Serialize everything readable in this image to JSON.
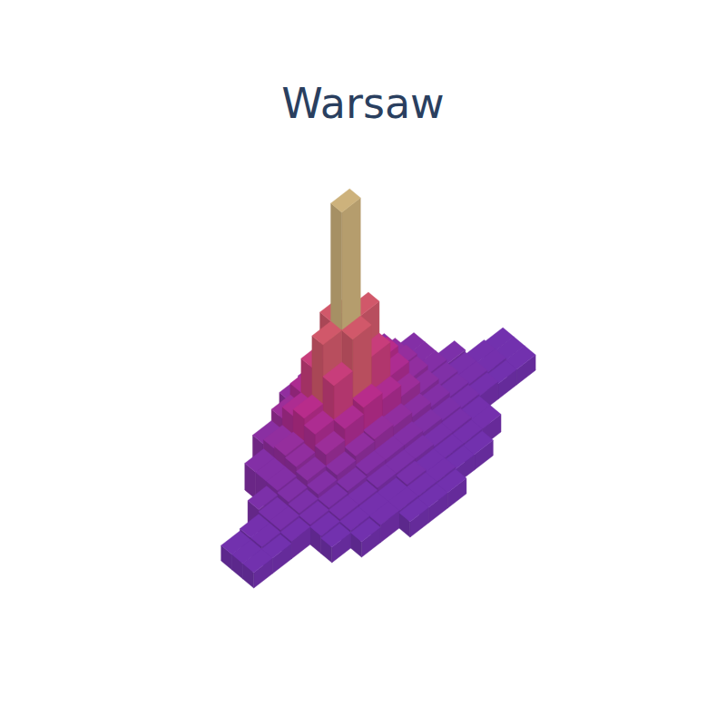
{
  "chart_data": {
    "type": "surface",
    "title": "Warsaw",
    "tick_labels": false,
    "zlim": [
      0,
      100
    ],
    "z": [
      [
        null,
        null,
        null,
        null,
        null,
        null,
        11,
        12,
        11,
        null,
        null,
        null,
        null,
        null,
        null
      ],
      [
        null,
        null,
        null,
        null,
        9,
        14,
        19,
        22,
        19,
        14,
        9,
        null,
        null,
        null,
        null
      ],
      [
        null,
        null,
        null,
        7,
        11,
        19,
        34,
        48,
        34,
        19,
        11,
        7,
        null,
        null,
        null
      ],
      [
        null,
        null,
        null,
        7,
        12,
        22,
        48,
        100,
        48,
        22,
        12,
        7,
        null,
        null,
        null
      ],
      [
        null,
        null,
        5,
        7,
        11,
        19,
        34,
        48,
        34,
        19,
        11,
        7,
        5,
        null,
        null
      ],
      [
        2,
        3,
        4,
        6,
        9,
        14,
        19,
        22,
        19,
        14,
        9,
        6,
        4,
        3,
        2
      ],
      [
        2,
        3,
        4,
        5,
        7,
        9,
        11,
        12,
        11,
        9,
        7,
        5,
        4,
        3,
        2
      ],
      [
        2,
        2,
        3,
        4,
        5,
        6,
        7,
        7,
        7,
        6,
        5,
        4,
        3,
        2,
        2
      ],
      [
        null,
        null,
        null,
        3,
        4,
        4,
        5,
        5,
        5,
        4,
        4,
        3,
        null,
        null,
        null
      ],
      [
        null,
        null,
        null,
        2,
        3,
        3,
        3,
        4,
        3,
        3,
        3,
        3,
        null,
        null,
        null
      ],
      [
        null,
        null,
        null,
        null,
        2,
        3,
        3,
        3,
        3,
        2,
        2,
        null,
        null,
        null,
        null
      ],
      [
        null,
        null,
        null,
        null,
        null,
        null,
        2,
        2,
        2,
        null,
        null,
        null,
        null,
        null,
        null
      ]
    ]
  }
}
